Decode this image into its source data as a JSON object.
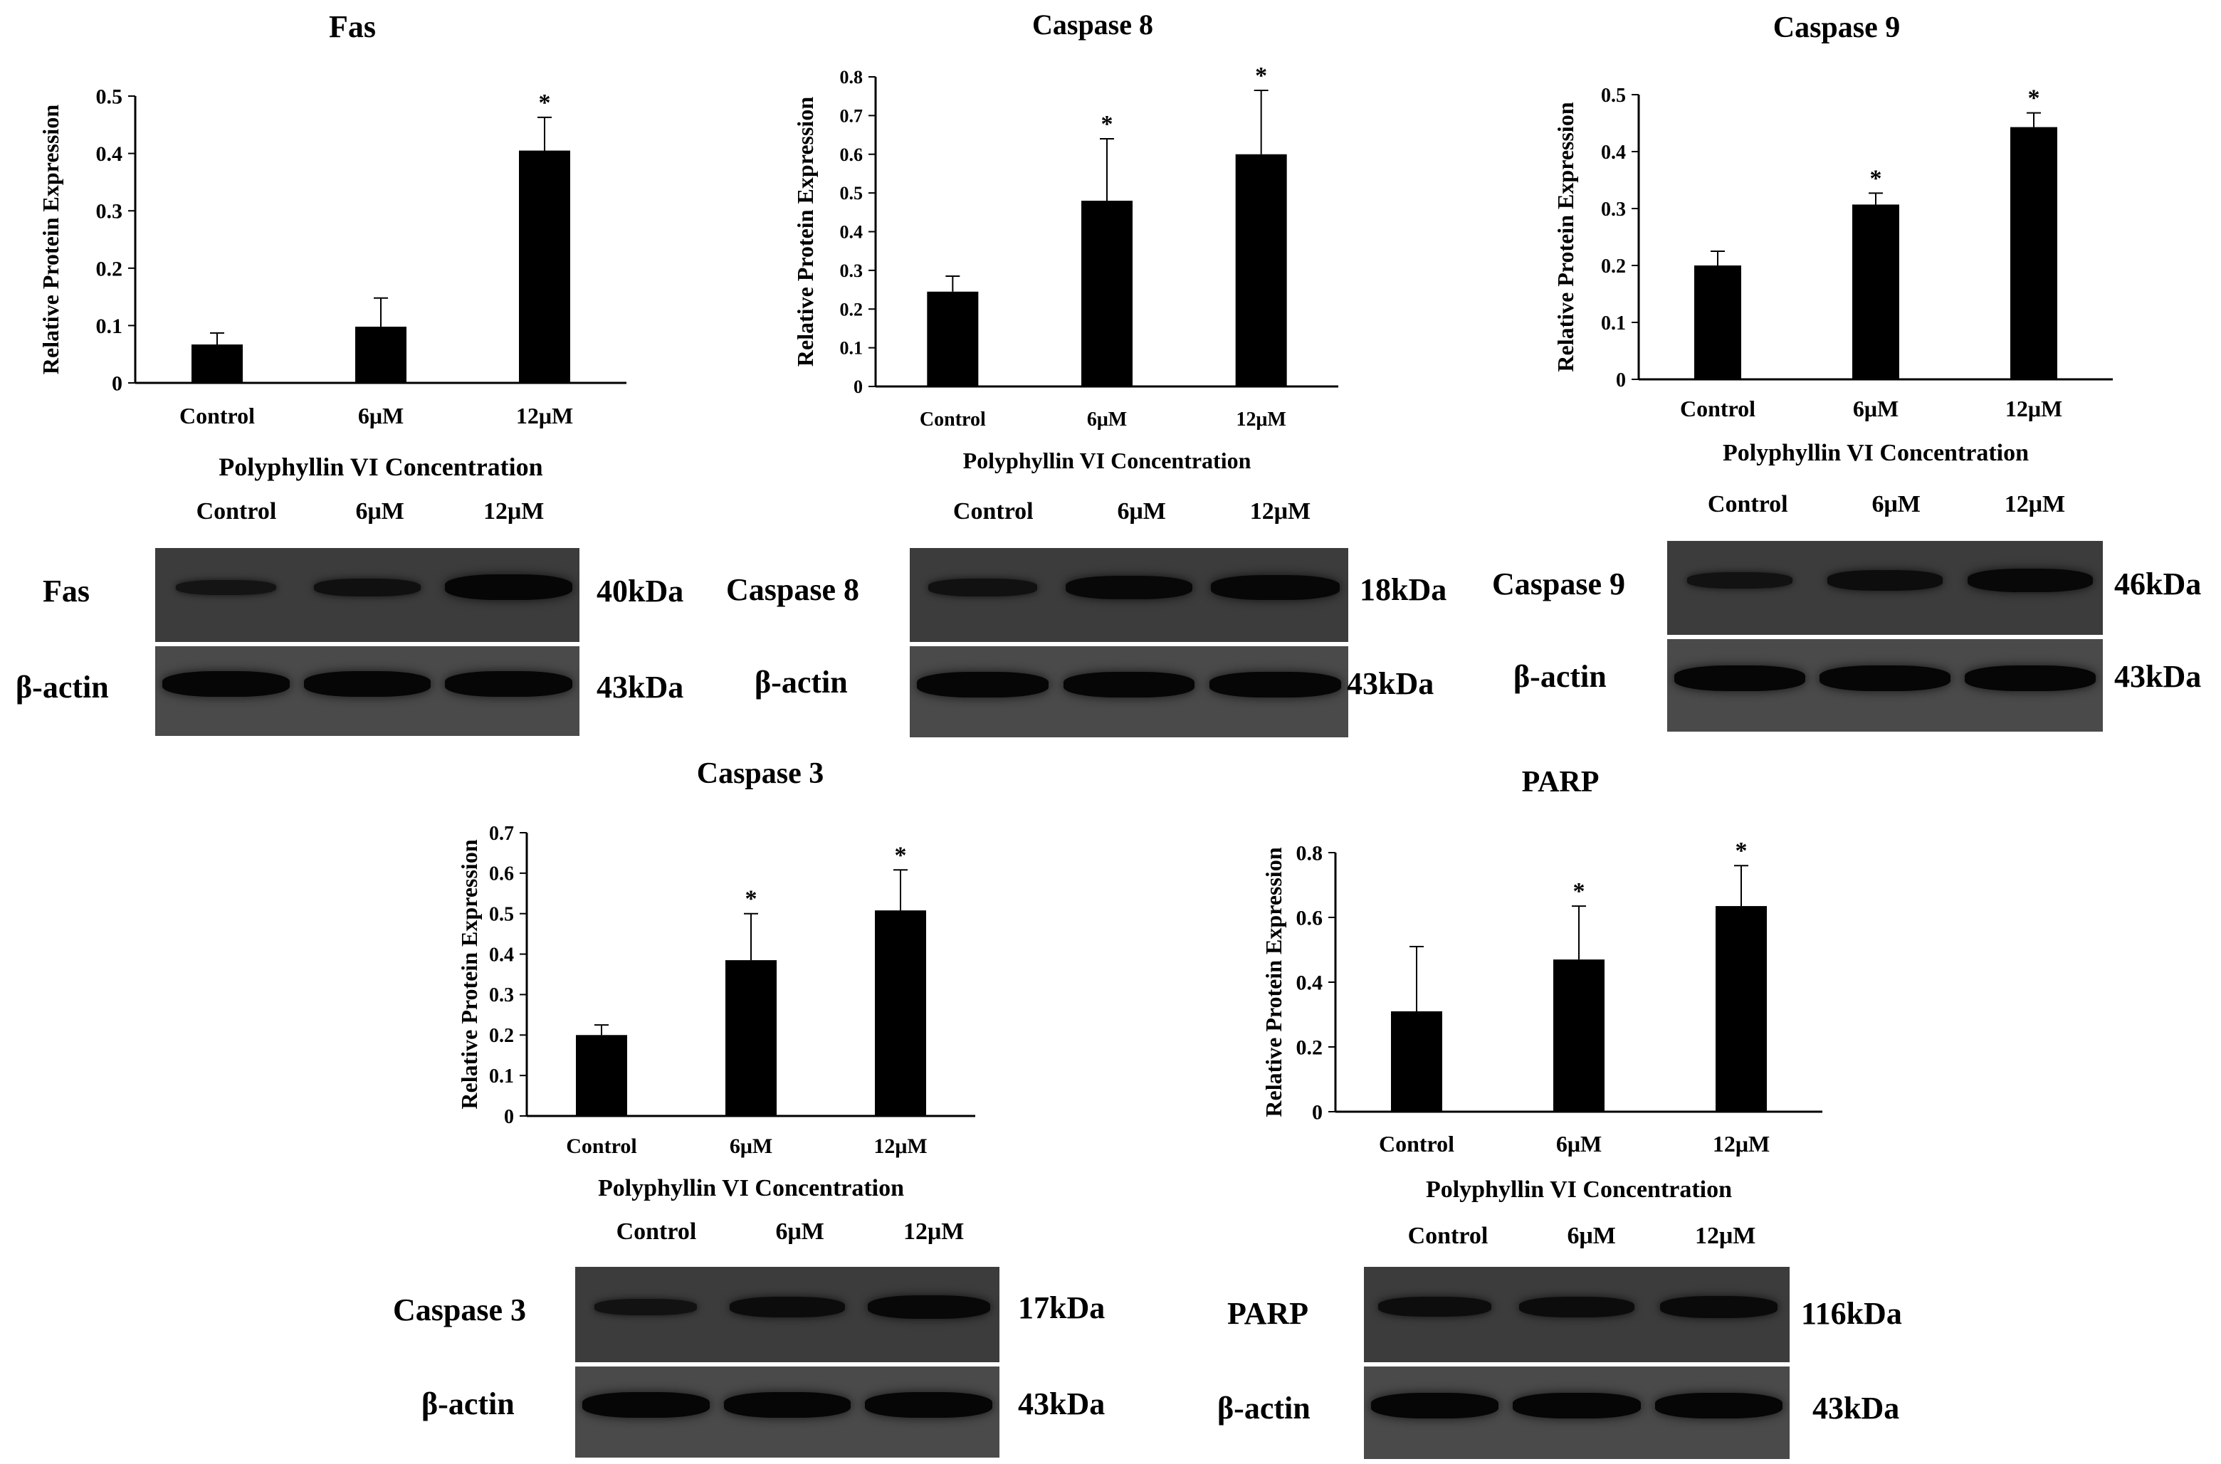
{
  "common": {
    "ylabel": "Relative Protein Expression",
    "xlabel": "Polyphyllin VI Concentration",
    "lanes": [
      "Control",
      "6μM",
      "12μM"
    ],
    "actin_label": "β-actin",
    "actin_kda": "43kDa"
  },
  "chart_data": [
    {
      "type": "bar",
      "title": "Fas",
      "categories": [
        "Control",
        "6μM",
        "12μM"
      ],
      "values": [
        0.067,
        0.098,
        0.405
      ],
      "errors": [
        0.02,
        0.05,
        0.058
      ],
      "significance": [
        "",
        "",
        "*"
      ],
      "ylim": [
        0,
        0.5
      ],
      "yticks": [
        0,
        0.1,
        0.2,
        0.3,
        0.4,
        0.5
      ],
      "ytick_labels": [
        "0",
        "0.1",
        "0.2",
        "0.3",
        "0.4",
        "0.5"
      ],
      "xlabel": "Polyphyllin VI Concentration",
      "ylabel": "Relative Protein Expression",
      "grid": false
    },
    {
      "type": "bar",
      "title": "Caspase 8",
      "categories": [
        "Control",
        "6μM",
        "12μM"
      ],
      "values": [
        0.245,
        0.48,
        0.6
      ],
      "errors": [
        0.04,
        0.16,
        0.165
      ],
      "significance": [
        "",
        "*",
        "*"
      ],
      "ylim": [
        0,
        0.8
      ],
      "yticks": [
        0,
        0.1,
        0.2,
        0.3,
        0.4,
        0.5,
        0.6,
        0.7,
        0.8
      ],
      "ytick_labels": [
        "0",
        "0.1",
        "0.2",
        "0.3",
        "0.4",
        "0.5",
        "0.6",
        "0.7",
        "0.8"
      ],
      "xlabel": "Polyphyllin VI Concentration",
      "ylabel": "Relative Protein Expression",
      "grid": false
    },
    {
      "type": "bar",
      "title": "Caspase 9",
      "categories": [
        "Control",
        "6μM",
        "12μM"
      ],
      "values": [
        0.2,
        0.307,
        0.443
      ],
      "errors": [
        0.025,
        0.02,
        0.025
      ],
      "significance": [
        "",
        "*",
        "*"
      ],
      "ylim": [
        0,
        0.5
      ],
      "yticks": [
        0,
        0.1,
        0.2,
        0.3,
        0.4,
        0.5
      ],
      "ytick_labels": [
        "0",
        "0.1",
        "0.2",
        "0.3",
        "0.4",
        "0.5"
      ],
      "xlabel": "Polyphyllin VI Concentration",
      "ylabel": "Relative Protein Expression",
      "grid": false
    },
    {
      "type": "bar",
      "title": "Caspase 3",
      "categories": [
        "Control",
        "6μM",
        "12μM"
      ],
      "values": [
        0.2,
        0.385,
        0.508
      ],
      "errors": [
        0.025,
        0.115,
        0.1
      ],
      "significance": [
        "",
        "*",
        "*"
      ],
      "ylim": [
        0,
        0.7
      ],
      "yticks": [
        0,
        0.1,
        0.2,
        0.3,
        0.4,
        0.5,
        0.6,
        0.7
      ],
      "ytick_labels": [
        "0",
        "0.1",
        "0.2",
        "0.3",
        "0.4",
        "0.5",
        "0.6",
        "0.7"
      ],
      "xlabel": "Polyphyllin VI Concentration",
      "ylabel": "Relative Protein Expression",
      "grid": false
    },
    {
      "type": "bar",
      "title": "PARP",
      "categories": [
        "Control",
        "6μM",
        "12μM"
      ],
      "values": [
        0.31,
        0.47,
        0.635
      ],
      "errors": [
        0.2,
        0.165,
        0.125
      ],
      "significance": [
        "",
        "*",
        "*"
      ],
      "ylim": [
        0,
        0.8
      ],
      "yticks": [
        0,
        0.2,
        0.4,
        0.6,
        0.8
      ],
      "ytick_labels": [
        "0",
        "0.2",
        "0.4",
        "0.6",
        "0.8"
      ],
      "xlabel": "Polyphyllin VI Concentration",
      "ylabel": "Relative Protein Expression",
      "grid": false
    }
  ],
  "blots": [
    {
      "protein": "Fas",
      "protein_kda": "40kDa",
      "band_intensity": [
        0.45,
        0.6,
        1.0
      ]
    },
    {
      "protein": "Caspase 8",
      "protein_kda": "18kDa",
      "band_intensity": [
        0.55,
        0.9,
        0.95
      ]
    },
    {
      "protein": "Caspase 9",
      "protein_kda": "46kDa",
      "band_intensity": [
        0.5,
        0.7,
        0.9
      ]
    },
    {
      "protein": "Caspase 3",
      "protein_kda": "17kDa",
      "band_intensity": [
        0.5,
        0.75,
        0.9
      ]
    },
    {
      "protein": "PARP",
      "protein_kda": "116kDa",
      "band_intensity": [
        0.7,
        0.75,
        0.8
      ]
    }
  ]
}
